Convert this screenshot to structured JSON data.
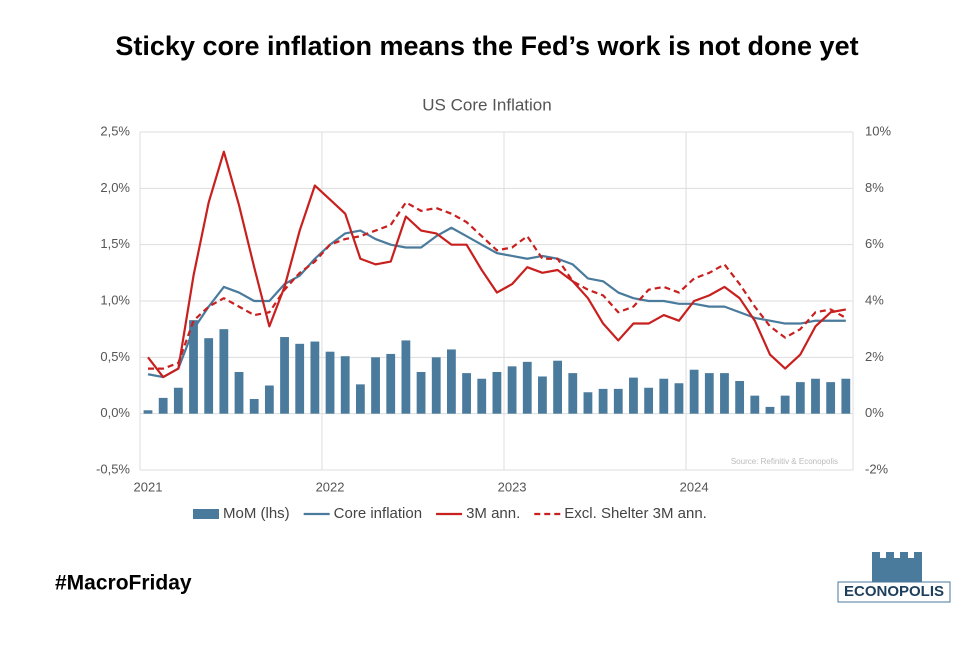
{
  "headline": "Sticky core inflation means the Fed’s work is not done yet",
  "tag": "#MacroFriday",
  "logo": "ECONOPOLIS",
  "chart_data": {
    "type": "combo",
    "title": "US Core Inflation",
    "source": "Source: Refinitiv & Econopolis",
    "categories": [
      "2021",
      null,
      null,
      null,
      null,
      null,
      null,
      null,
      null,
      null,
      null,
      null,
      "2022",
      null,
      null,
      null,
      null,
      null,
      null,
      null,
      null,
      null,
      null,
      null,
      "2023",
      null,
      null,
      null,
      null,
      null,
      null,
      null,
      null,
      null,
      null,
      null,
      "2024",
      null,
      null,
      null,
      null,
      null,
      null,
      null,
      null,
      null,
      null
    ],
    "ylim": [
      -0.5,
      2.5
    ],
    "yticks": [
      {
        "value": -0.5,
        "label": "-0,5%"
      },
      {
        "value": 0,
        "label": "0,0%"
      },
      {
        "value": 0.5,
        "label": "0,5%"
      },
      {
        "value": 1,
        "label": "1,0%"
      },
      {
        "value": 1.5,
        "label": "1,5%"
      },
      {
        "value": 2,
        "label": "2,0%"
      },
      {
        "value": 2.5,
        "label": "2,5%"
      }
    ],
    "y2lim": [
      -2,
      10
    ],
    "y2ticks": [
      {
        "value": -2,
        "label": "-2%"
      },
      {
        "value": 0,
        "label": "0%"
      },
      {
        "value": 2,
        "label": "2%"
      },
      {
        "value": 4,
        "label": "4%"
      },
      {
        "value": 6,
        "label": "6%"
      },
      {
        "value": 8,
        "label": "8%"
      },
      {
        "value": 10,
        "label": "10%"
      }
    ],
    "grid": true,
    "legend": "bottom",
    "series": [
      {
        "name": "MoM (lhs)",
        "type": "bar",
        "color": "#4a7a9c",
        "values": [
          0.03,
          0.14,
          0.23,
          0.83,
          0.67,
          0.75,
          0.37,
          0.13,
          0.25,
          0.68,
          0.62,
          0.64,
          0.55,
          0.51,
          0.26,
          0.5,
          0.53,
          0.65,
          0.37,
          0.5,
          0.57,
          0.36,
          0.31,
          0.37,
          0.42,
          0.46,
          0.33,
          0.47,
          0.36,
          0.19,
          0.22,
          0.22,
          0.32,
          0.23,
          0.31,
          0.27,
          0.39,
          0.36,
          0.36,
          0.29,
          0.16,
          0.06,
          0.16,
          0.28,
          0.31,
          0.28,
          0.31
        ]
      },
      {
        "name": "Core inflation",
        "type": "line",
        "axis": "y2",
        "color": "#4a7a9c",
        "values": [
          1.4,
          1.3,
          1.6,
          3.0,
          3.8,
          4.5,
          4.3,
          4.0,
          4.0,
          4.6,
          4.9,
          5.5,
          6.0,
          6.4,
          6.5,
          6.2,
          6.0,
          5.9,
          5.9,
          6.3,
          6.6,
          6.3,
          6.0,
          5.7,
          5.6,
          5.5,
          5.6,
          5.5,
          5.3,
          4.8,
          4.7,
          4.3,
          4.1,
          4.0,
          4.0,
          3.9,
          3.9,
          3.8,
          3.8,
          3.6,
          3.4,
          3.3,
          3.2,
          3.2,
          3.3,
          3.3,
          3.3
        ]
      },
      {
        "name": "3M ann.",
        "type": "line",
        "axis": "y2",
        "color": "#c8201e",
        "values": [
          2.0,
          1.3,
          1.6,
          4.9,
          7.5,
          9.3,
          7.4,
          5.2,
          3.1,
          4.5,
          6.5,
          8.1,
          7.6,
          7.1,
          5.5,
          5.3,
          5.4,
          7.0,
          6.5,
          6.4,
          6.0,
          6.0,
          5.1,
          4.3,
          4.6,
          5.2,
          5.0,
          5.1,
          4.7,
          4.1,
          3.2,
          2.6,
          3.2,
          3.2,
          3.5,
          3.3,
          4.0,
          4.2,
          4.5,
          4.1,
          3.3,
          2.1,
          1.6,
          2.1,
          3.1,
          3.6,
          3.7
        ]
      },
      {
        "name": "Excl. Shelter 3M ann.",
        "type": "line",
        "axis": "y2",
        "dashed": true,
        "color": "#c8201e",
        "values": [
          1.6,
          1.6,
          1.8,
          3.3,
          3.8,
          4.1,
          3.8,
          3.5,
          3.6,
          4.4,
          5.0,
          5.4,
          6.0,
          6.2,
          6.3,
          6.5,
          6.7,
          7.5,
          7.2,
          7.3,
          7.1,
          6.8,
          6.3,
          5.8,
          5.9,
          6.3,
          5.5,
          5.5,
          4.7,
          4.4,
          4.2,
          3.6,
          3.8,
          4.4,
          4.5,
          4.3,
          4.8,
          5.0,
          5.3,
          4.6,
          3.8,
          3.1,
          2.7,
          3.0,
          3.6,
          3.7,
          3.4
        ]
      }
    ]
  }
}
